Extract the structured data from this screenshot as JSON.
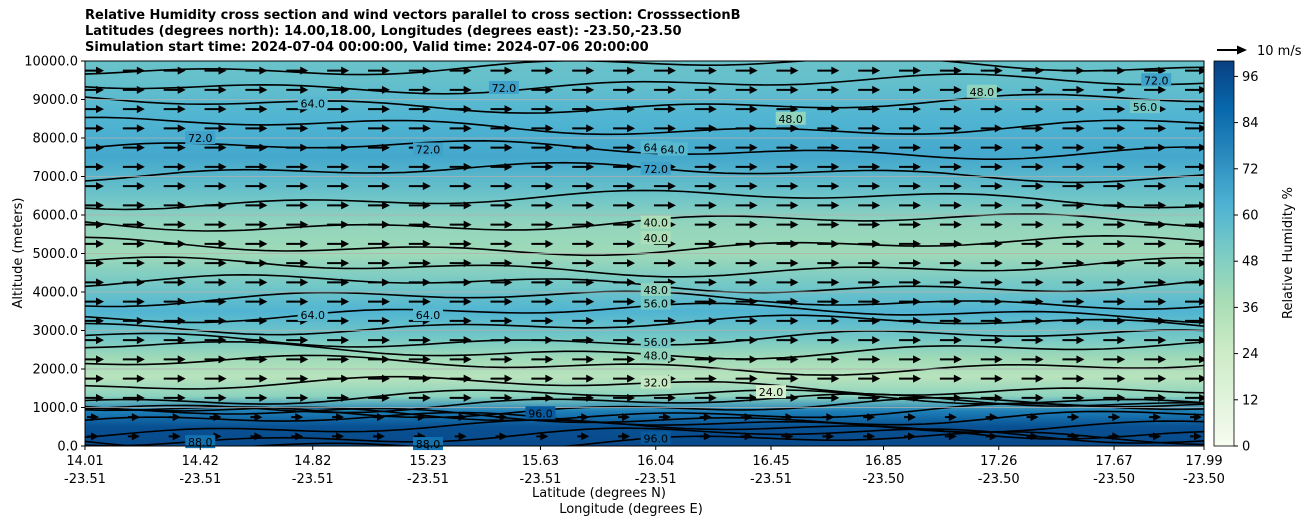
{
  "title_lines": [
    "Relative Humidity cross section and wind vectors parallel to cross section: CrosssectionB",
    "Latitudes (degrees north): 14.00,18.00, Longitudes (degrees east): -23.50,-23.50",
    "Simulation start time: 2024-07-04 00:00:00, Valid time: 2024-07-06 20:00:00"
  ],
  "chart_data": {
    "type": "heatmap",
    "subtype": "filled-contour cross section with wind vectors",
    "ylabel": "Altitude (meters)",
    "xlabel_lines": [
      "Latitude (degrees N)",
      "Longitude (degrees E)"
    ],
    "ylim": [
      0,
      10000
    ],
    "y_ticks": [
      "0.0",
      "1000.0",
      "2000.0",
      "3000.0",
      "4000.0",
      "5000.0",
      "6000.0",
      "7000.0",
      "8000.0",
      "9000.0",
      "10000.0"
    ],
    "x_ticks": [
      {
        "lat": "14.01",
        "lon": "-23.51"
      },
      {
        "lat": "14.42",
        "lon": "-23.51"
      },
      {
        "lat": "14.82",
        "lon": "-23.51"
      },
      {
        "lat": "15.23",
        "lon": "-23.51"
      },
      {
        "lat": "15.63",
        "lon": "-23.51"
      },
      {
        "lat": "16.04",
        "lon": "-23.51"
      },
      {
        "lat": "16.45",
        "lon": "-23.51"
      },
      {
        "lat": "16.85",
        "lon": "-23.50"
      },
      {
        "lat": "17.26",
        "lon": "-23.50"
      },
      {
        "lat": "17.67",
        "lon": "-23.50"
      },
      {
        "lat": "17.99",
        "lon": "-23.50"
      }
    ],
    "grid": "horizontal",
    "colorbar": {
      "label": "Relative Humidity %",
      "ticks": [
        "0",
        "12",
        "24",
        "36",
        "48",
        "60",
        "72",
        "84",
        "96"
      ],
      "range": [
        0,
        100
      ],
      "colormap": "GnBu",
      "colors": [
        "#f7fcf0",
        "#e0f3db",
        "#ccebc5",
        "#a8ddb5",
        "#7bccc4",
        "#4eb3d3",
        "#2b8cbe",
        "#0868ac",
        "#084081"
      ]
    },
    "wind_key": {
      "label": "10 m/s"
    },
    "profile": [
      {
        "alt": 0,
        "rh": 97
      },
      {
        "alt": 500,
        "rh": 95
      },
      {
        "alt": 900,
        "rh": 80
      },
      {
        "alt": 1300,
        "rh": 45
      },
      {
        "alt": 1800,
        "rh": 32
      },
      {
        "alt": 2300,
        "rh": 40
      },
      {
        "alt": 2800,
        "rh": 52
      },
      {
        "alt": 3500,
        "rh": 62
      },
      {
        "alt": 4200,
        "rh": 52
      },
      {
        "alt": 5000,
        "rh": 40
      },
      {
        "alt": 5800,
        "rh": 44
      },
      {
        "alt": 6500,
        "rh": 54
      },
      {
        "alt": 7500,
        "rh": 66
      },
      {
        "alt": 8500,
        "rh": 62
      },
      {
        "alt": 9500,
        "rh": 56
      },
      {
        "alt": 10000,
        "rh": 55
      }
    ],
    "contour_labels": [
      {
        "text": "96.0",
        "lat": 16.04,
        "alt": 200
      },
      {
        "text": "96.0",
        "lat": 15.63,
        "alt": 850
      },
      {
        "text": "88.0",
        "lat": 14.42,
        "alt": 100
      },
      {
        "text": "88.0",
        "lat": 15.23,
        "alt": 50
      },
      {
        "text": "32.0",
        "lat": 16.04,
        "alt": 1650
      },
      {
        "text": "24.0",
        "lat": 16.45,
        "alt": 1400
      },
      {
        "text": "48.0",
        "lat": 16.04,
        "alt": 2350
      },
      {
        "text": "56.0",
        "lat": 16.04,
        "alt": 2700
      },
      {
        "text": "64.0",
        "lat": 15.23,
        "alt": 3400
      },
      {
        "text": "64.0",
        "lat": 14.82,
        "alt": 3400
      },
      {
        "text": "56.0",
        "lat": 16.04,
        "alt": 3700
      },
      {
        "text": "48.0",
        "lat": 16.04,
        "alt": 4050
      },
      {
        "text": "40.0",
        "lat": 16.04,
        "alt": 5400
      },
      {
        "text": "40.0",
        "lat": 16.04,
        "alt": 5800
      },
      {
        "text": "72.0",
        "lat": 16.04,
        "alt": 7200
      },
      {
        "text": "64.0",
        "lat": 16.04,
        "alt": 7750
      },
      {
        "text": "64.0",
        "lat": 16.1,
        "alt": 7700
      },
      {
        "text": "72.0",
        "lat": 14.42,
        "alt": 8000
      },
      {
        "text": "72.0",
        "lat": 15.23,
        "alt": 7700
      },
      {
        "text": "64.0",
        "lat": 14.82,
        "alt": 8900
      },
      {
        "text": "72.0",
        "lat": 15.5,
        "alt": 9300
      },
      {
        "text": "48.0",
        "lat": 16.52,
        "alt": 8500
      },
      {
        "text": "48.0",
        "lat": 17.2,
        "alt": 9200
      },
      {
        "text": "56.0",
        "lat": 17.78,
        "alt": 8800
      },
      {
        "text": "72.0",
        "lat": 17.82,
        "alt": 9500
      }
    ]
  }
}
